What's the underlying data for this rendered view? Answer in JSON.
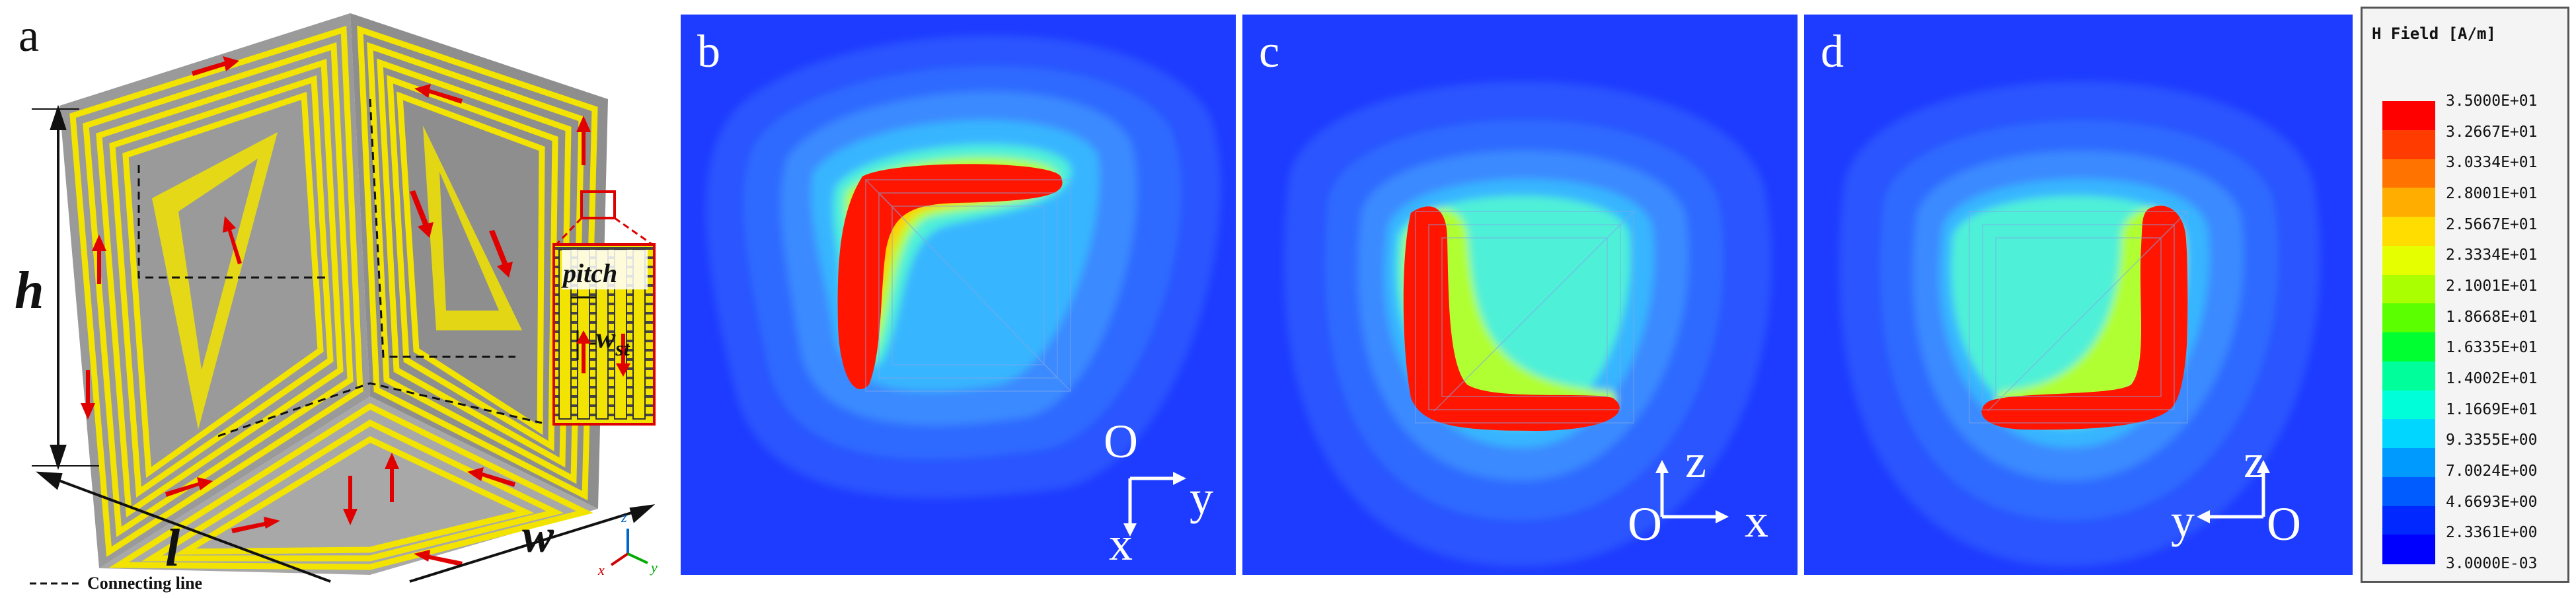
{
  "panels": {
    "a": {
      "label": "a",
      "dim_h": "h",
      "dim_l": "l",
      "dim_w": "w",
      "inset_pitch": "pitch",
      "inset_w": "w",
      "inset_st": "st",
      "legend_connecting": "Connecting line",
      "axis_z": "z",
      "axis_x": "x",
      "axis_y": "y"
    },
    "b": {
      "label": "b",
      "axis_top": "O",
      "axis_right": "y",
      "axis_bottom": "x"
    },
    "c": {
      "label": "c",
      "axis_up": "z",
      "axis_origin": "O",
      "axis_right": "x"
    },
    "d": {
      "label": "d",
      "axis_up": "z",
      "axis_origin": "O",
      "axis_left": "y"
    }
  },
  "legend": {
    "title": "H Field [A/m]",
    "ticks": [
      "3.5000E+01",
      "3.2667E+01",
      "3.0334E+01",
      "2.8001E+01",
      "2.5667E+01",
      "2.3334E+01",
      "2.1001E+01",
      "1.8668E+01",
      "1.6335E+01",
      "1.4002E+01",
      "1.1669E+01",
      "9.3355E+00",
      "7.0024E+00",
      "4.6693E+00",
      "2.3361E+00",
      "3.0000E-03"
    ],
    "colors": [
      "#ff0000",
      "#ff3b00",
      "#ff7400",
      "#ffae00",
      "#ffdd00",
      "#e6ff00",
      "#aaff00",
      "#5cff00",
      "#00ff30",
      "#00ff9a",
      "#00ffd9",
      "#00d6ff",
      "#009aff",
      "#005cff",
      "#0028ff",
      "#0000ff"
    ]
  }
}
